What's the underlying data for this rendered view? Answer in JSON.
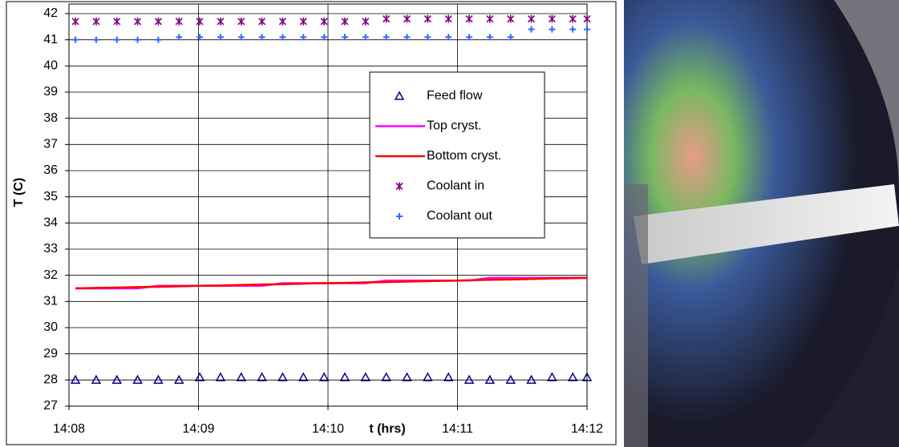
{
  "chart_data": {
    "type": "line",
    "ylabel": "T (C)",
    "xlabel": "t (hrs)",
    "x": [
      848.05,
      848.21,
      848.37,
      848.53,
      848.69,
      848.85,
      849.01,
      849.17,
      849.33,
      849.49,
      849.65,
      849.81,
      849.97,
      850.13,
      850.29,
      850.45,
      850.61,
      850.77,
      850.93,
      851.09,
      851.25,
      851.41,
      851.57,
      851.73,
      851.89,
      852.0
    ],
    "series": [
      {
        "name": "Feed flow",
        "color": "#000080",
        "marker": "triangle",
        "values": [
          28.0,
          28.0,
          28.0,
          28.0,
          28.0,
          28.0,
          28.1,
          28.1,
          28.1,
          28.1,
          28.1,
          28.1,
          28.1,
          28.1,
          28.1,
          28.1,
          28.1,
          28.1,
          28.1,
          28.0,
          28.0,
          28.0,
          28.0,
          28.1,
          28.1,
          28.1
        ]
      },
      {
        "name": "Top cryst.",
        "color": "#ff00ff",
        "marker": "line",
        "values": [
          31.5,
          31.5,
          31.5,
          31.5,
          31.6,
          31.6,
          31.6,
          31.6,
          31.6,
          31.6,
          31.7,
          31.7,
          31.7,
          31.7,
          31.7,
          31.8,
          31.8,
          31.8,
          31.8,
          31.8,
          31.9,
          31.9,
          31.9,
          31.9,
          31.9,
          31.9
        ]
      },
      {
        "name": "Bottom cryst.",
        "color": "#ff0000",
        "marker": "line",
        "values": [
          31.5,
          31.52,
          31.53,
          31.55,
          31.56,
          31.58,
          31.6,
          31.61,
          31.63,
          31.65,
          31.66,
          31.68,
          31.7,
          31.71,
          31.73,
          31.74,
          31.76,
          31.78,
          31.79,
          31.81,
          31.83,
          31.84,
          31.86,
          31.88,
          31.89,
          31.9
        ]
      },
      {
        "name": "Coolant in",
        "color": "#800080",
        "marker": "asterisk",
        "values": [
          41.7,
          41.7,
          41.7,
          41.7,
          41.7,
          41.7,
          41.7,
          41.7,
          41.7,
          41.7,
          41.7,
          41.7,
          41.7,
          41.7,
          41.7,
          41.8,
          41.8,
          41.8,
          41.8,
          41.8,
          41.8,
          41.8,
          41.8,
          41.8,
          41.8,
          41.8
        ]
      },
      {
        "name": "Coolant out",
        "color": "#3366ff",
        "marker": "plus",
        "values": [
          41.0,
          41.0,
          41.0,
          41.0,
          41.0,
          41.1,
          41.1,
          41.1,
          41.1,
          41.1,
          41.1,
          41.1,
          41.1,
          41.1,
          41.1,
          41.1,
          41.1,
          41.1,
          41.1,
          41.1,
          41.1,
          41.1,
          41.4,
          41.4,
          41.4,
          41.4
        ]
      }
    ],
    "xlim": [
      848,
      852
    ],
    "xticks": [
      {
        "value": 848,
        "label": "14:08"
      },
      {
        "value": 849,
        "label": "14:09"
      },
      {
        "value": 850,
        "label": "14:10"
      },
      {
        "value": 851,
        "label": "14:11"
      },
      {
        "value": 852,
        "label": "14:12"
      }
    ],
    "ylim": [
      27,
      42
    ],
    "yticks": [
      27,
      28,
      29,
      30,
      31,
      32,
      33,
      34,
      35,
      36,
      37,
      38,
      39,
      40,
      41,
      42
    ],
    "grid": true
  }
}
